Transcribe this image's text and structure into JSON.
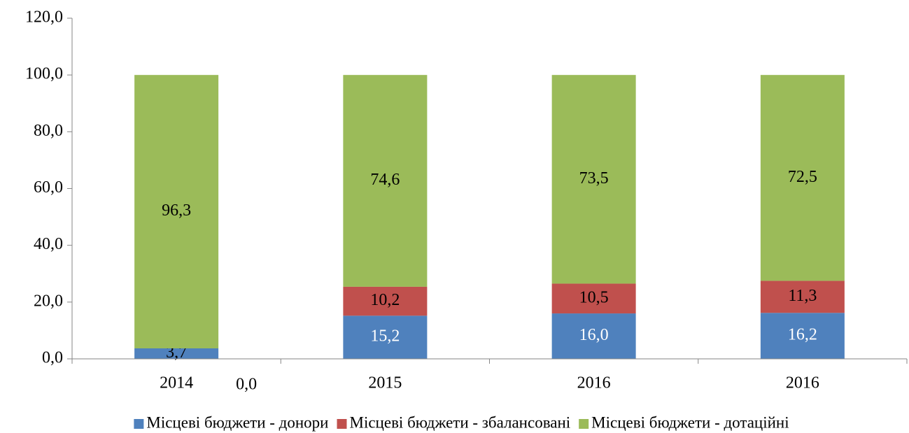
{
  "chart_data": {
    "type": "stacked_bar",
    "categories": [
      "2014",
      "2015",
      "2016",
      "2016"
    ],
    "series": [
      {
        "name": "Місцеві бюджети - донори",
        "color": "#4f81bd",
        "values": [
          3.7,
          15.2,
          16.0,
          16.2
        ],
        "value_labels": [
          "3,7",
          "15,2",
          "16,0",
          "16,2"
        ]
      },
      {
        "name": "Місцеві бюджети - збалансовані",
        "color": "#c0504d",
        "values": [
          0.0,
          10.2,
          10.5,
          11.3
        ],
        "value_labels": [
          "0,0",
          "10,2",
          "10,5",
          "11,3"
        ]
      },
      {
        "name": "Місцеві бюджети - дотаційні",
        "color": "#9bbb59",
        "values": [
          96.3,
          74.6,
          73.5,
          72.5
        ],
        "value_labels": [
          "96,3",
          "74,6",
          "73,5",
          "72,5"
        ]
      }
    ],
    "ylim": [
      0,
      120
    ],
    "yticks": [
      {
        "value": 0,
        "label": "0,0"
      },
      {
        "value": 20,
        "label": "20,0"
      },
      {
        "value": 40,
        "label": "40,0"
      },
      {
        "value": 60,
        "label": "60,0"
      },
      {
        "value": 80,
        "label": "80,0"
      },
      {
        "value": 100,
        "label": "100,0"
      },
      {
        "value": 120,
        "label": "120,0"
      }
    ],
    "legend": "bottom"
  }
}
